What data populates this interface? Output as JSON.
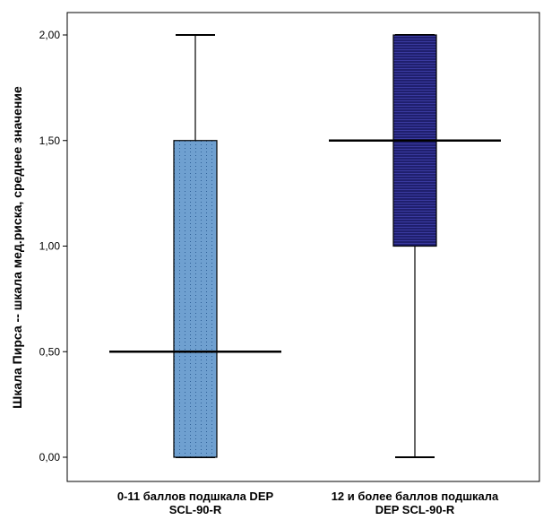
{
  "chart_data": {
    "type": "boxplot",
    "title": "",
    "xlabel": "",
    "ylabel": "Шкала Пирса -- шкала мед.риска, среднее значение",
    "ylim": [
      -0.1,
      2.1
    ],
    "yticks": [
      0.0,
      0.5,
      1.0,
      1.5,
      2.0
    ],
    "ytick_labels": [
      "0,00",
      "0,50",
      "1,00",
      "1,50",
      "2,00"
    ],
    "grid": false,
    "categories": [
      {
        "lines": [
          "0-11 баллов подшкала DEP",
          "SCL-90-R"
        ]
      },
      {
        "lines": [
          "12 и более баллов подшкала",
          "DEP SCL-90-R"
        ]
      }
    ],
    "boxes": [
      {
        "min": 0.0,
        "q1": 0.0,
        "median": 0.5,
        "q3": 1.5,
        "max": 2.0,
        "fill": "#6fa0d0",
        "pattern": "dotted"
      },
      {
        "min": 0.0,
        "q1": 1.0,
        "median": 1.5,
        "q3": 2.0,
        "max": 2.0,
        "fill": "#1f1f6e",
        "pattern": "lined"
      }
    ],
    "colors": {
      "box1": "#6fa0d0",
      "box2": "#1f1f6e",
      "lines": "#000000"
    }
  }
}
